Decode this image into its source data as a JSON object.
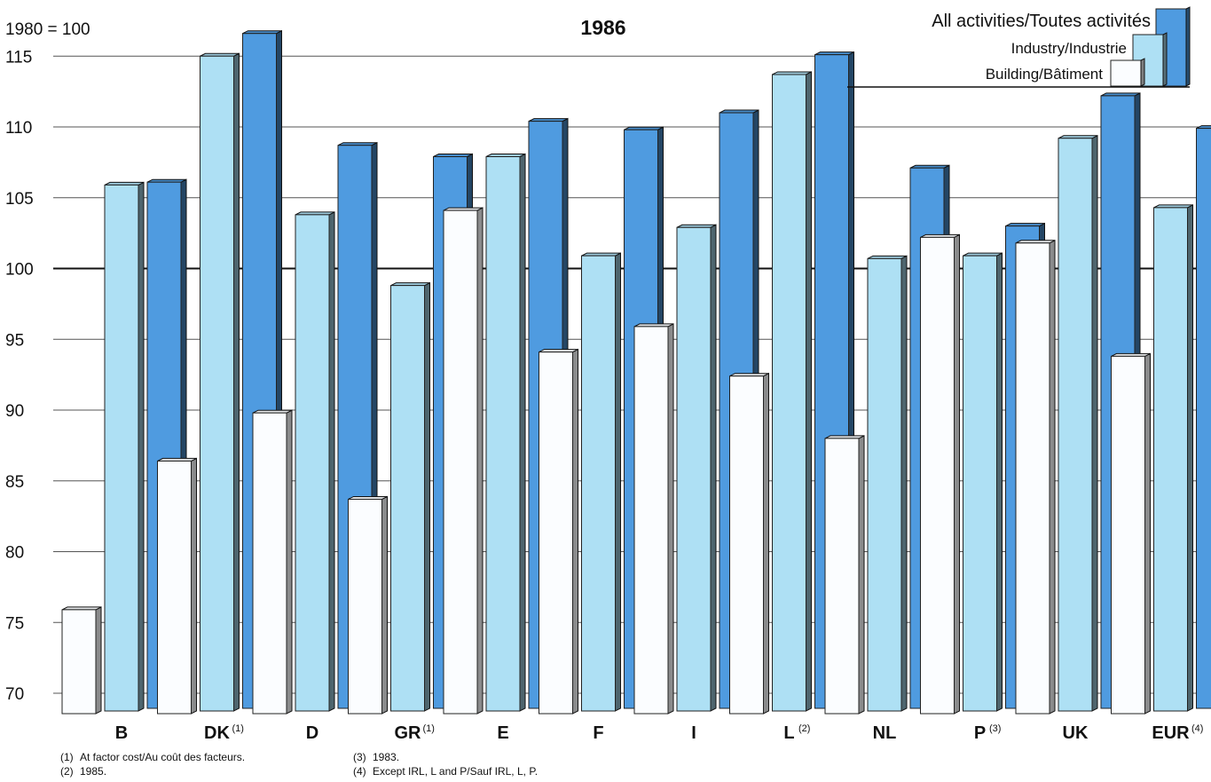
{
  "chart_data": {
    "type": "bar",
    "title": "1986",
    "unit_label": "1980 = 100",
    "ylim": [
      68,
      117
    ],
    "yticks": [
      70,
      75,
      80,
      85,
      90,
      95,
      100,
      105,
      110,
      115
    ],
    "categories": [
      "B",
      "DK",
      "D",
      "GR",
      "E",
      "F",
      "I",
      "L",
      "NL",
      "P",
      "UK",
      "EUR"
    ],
    "category_notes": [
      "",
      "(1)",
      "",
      "(1)",
      "",
      "",
      "",
      "(2)",
      "",
      "(3)",
      "",
      "(4)"
    ],
    "series": [
      {
        "name": "Building/Bâtiment",
        "color": "#fbfdff",
        "values": [
          75.9,
          86.4,
          89.8,
          83.7,
          104.1,
          94.1,
          95.9,
          92.4,
          88.0,
          102.2,
          101.8,
          93.8
        ]
      },
      {
        "name": "Industry/Industrie",
        "color": "#aee0f4",
        "values": [
          105.9,
          115.0,
          103.8,
          98.8,
          107.9,
          100.9,
          102.9,
          113.7,
          100.7,
          100.9,
          109.2,
          104.3
        ]
      },
      {
        "name": "All activities/Toutes activités",
        "color": "#4f9be0",
        "values": [
          106.1,
          116.6,
          108.7,
          107.9,
          110.4,
          109.8,
          111.0,
          115.1,
          107.1,
          103.0,
          112.2,
          109.9
        ]
      }
    ],
    "legend_position": "top-right",
    "grid": true
  },
  "footnotes": [
    {
      "mark": "(1)",
      "text": "At factor cost/Au coût des facteurs."
    },
    {
      "mark": "(2)",
      "text": "1985."
    },
    {
      "mark": "(3)",
      "text": "1983."
    },
    {
      "mark": "(4)",
      "text": "Except IRL, L and P/Sauf IRL, L, P."
    }
  ]
}
